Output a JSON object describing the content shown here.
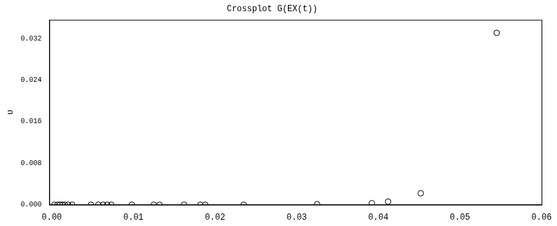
{
  "chart_data": {
    "type": "scatter",
    "title": "Crossplot G(EX(t))",
    "ylabel": "υ",
    "marker": "circle",
    "color": "#000000",
    "grid": false,
    "x": [
      0.0003,
      0.0007,
      0.001,
      0.0013,
      0.0016,
      0.002,
      0.0025,
      0.0048,
      0.0057,
      0.0063,
      0.0068,
      0.0073,
      0.0098,
      0.0125,
      0.0132,
      0.0162,
      0.0182,
      0.0188,
      0.0235,
      0.0325,
      0.0392,
      0.0412,
      0.0452,
      0.0545
    ],
    "values": [
      0,
      0,
      0,
      0,
      0,
      0,
      0,
      0,
      0,
      0,
      0,
      0,
      0,
      0,
      0,
      0,
      0,
      0,
      0,
      0.0001,
      0.0003,
      0.0006,
      0.0022,
      0.0331
    ],
    "xlim": [
      -0.0003,
      0.06
    ],
    "ylim": [
      0,
      0.0356
    ],
    "xticks": [
      {
        "value": 0,
        "label": "0.00"
      },
      0.01,
      0.02,
      0.03,
      0.04,
      0.05,
      0.06
    ],
    "yticks": [
      {
        "value": 0,
        "label": "0.000"
      },
      0.008,
      0.016,
      0.024,
      0.032
    ]
  }
}
